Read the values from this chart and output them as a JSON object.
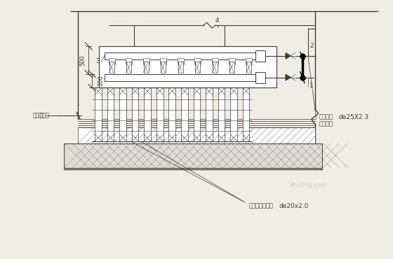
{
  "bg_color": "#f0ede4",
  "line_color": "#3a3a3a",
  "labels": {
    "room_line": "房间线",
    "pipe_label": "供回水管",
    "pipe_spec": "de25X2.3",
    "boiler_label": "抛壁挂炉",
    "floor_pipe_label": "地暖辐射加热管",
    "floor_pipe_spec": "de20x2.0",
    "dim_500": "500",
    "dim_200": "200",
    "num_1": "1",
    "num_2": "2",
    "num_3": "3",
    "num_4": "4"
  },
  "watermark_text": "zhulong.com"
}
